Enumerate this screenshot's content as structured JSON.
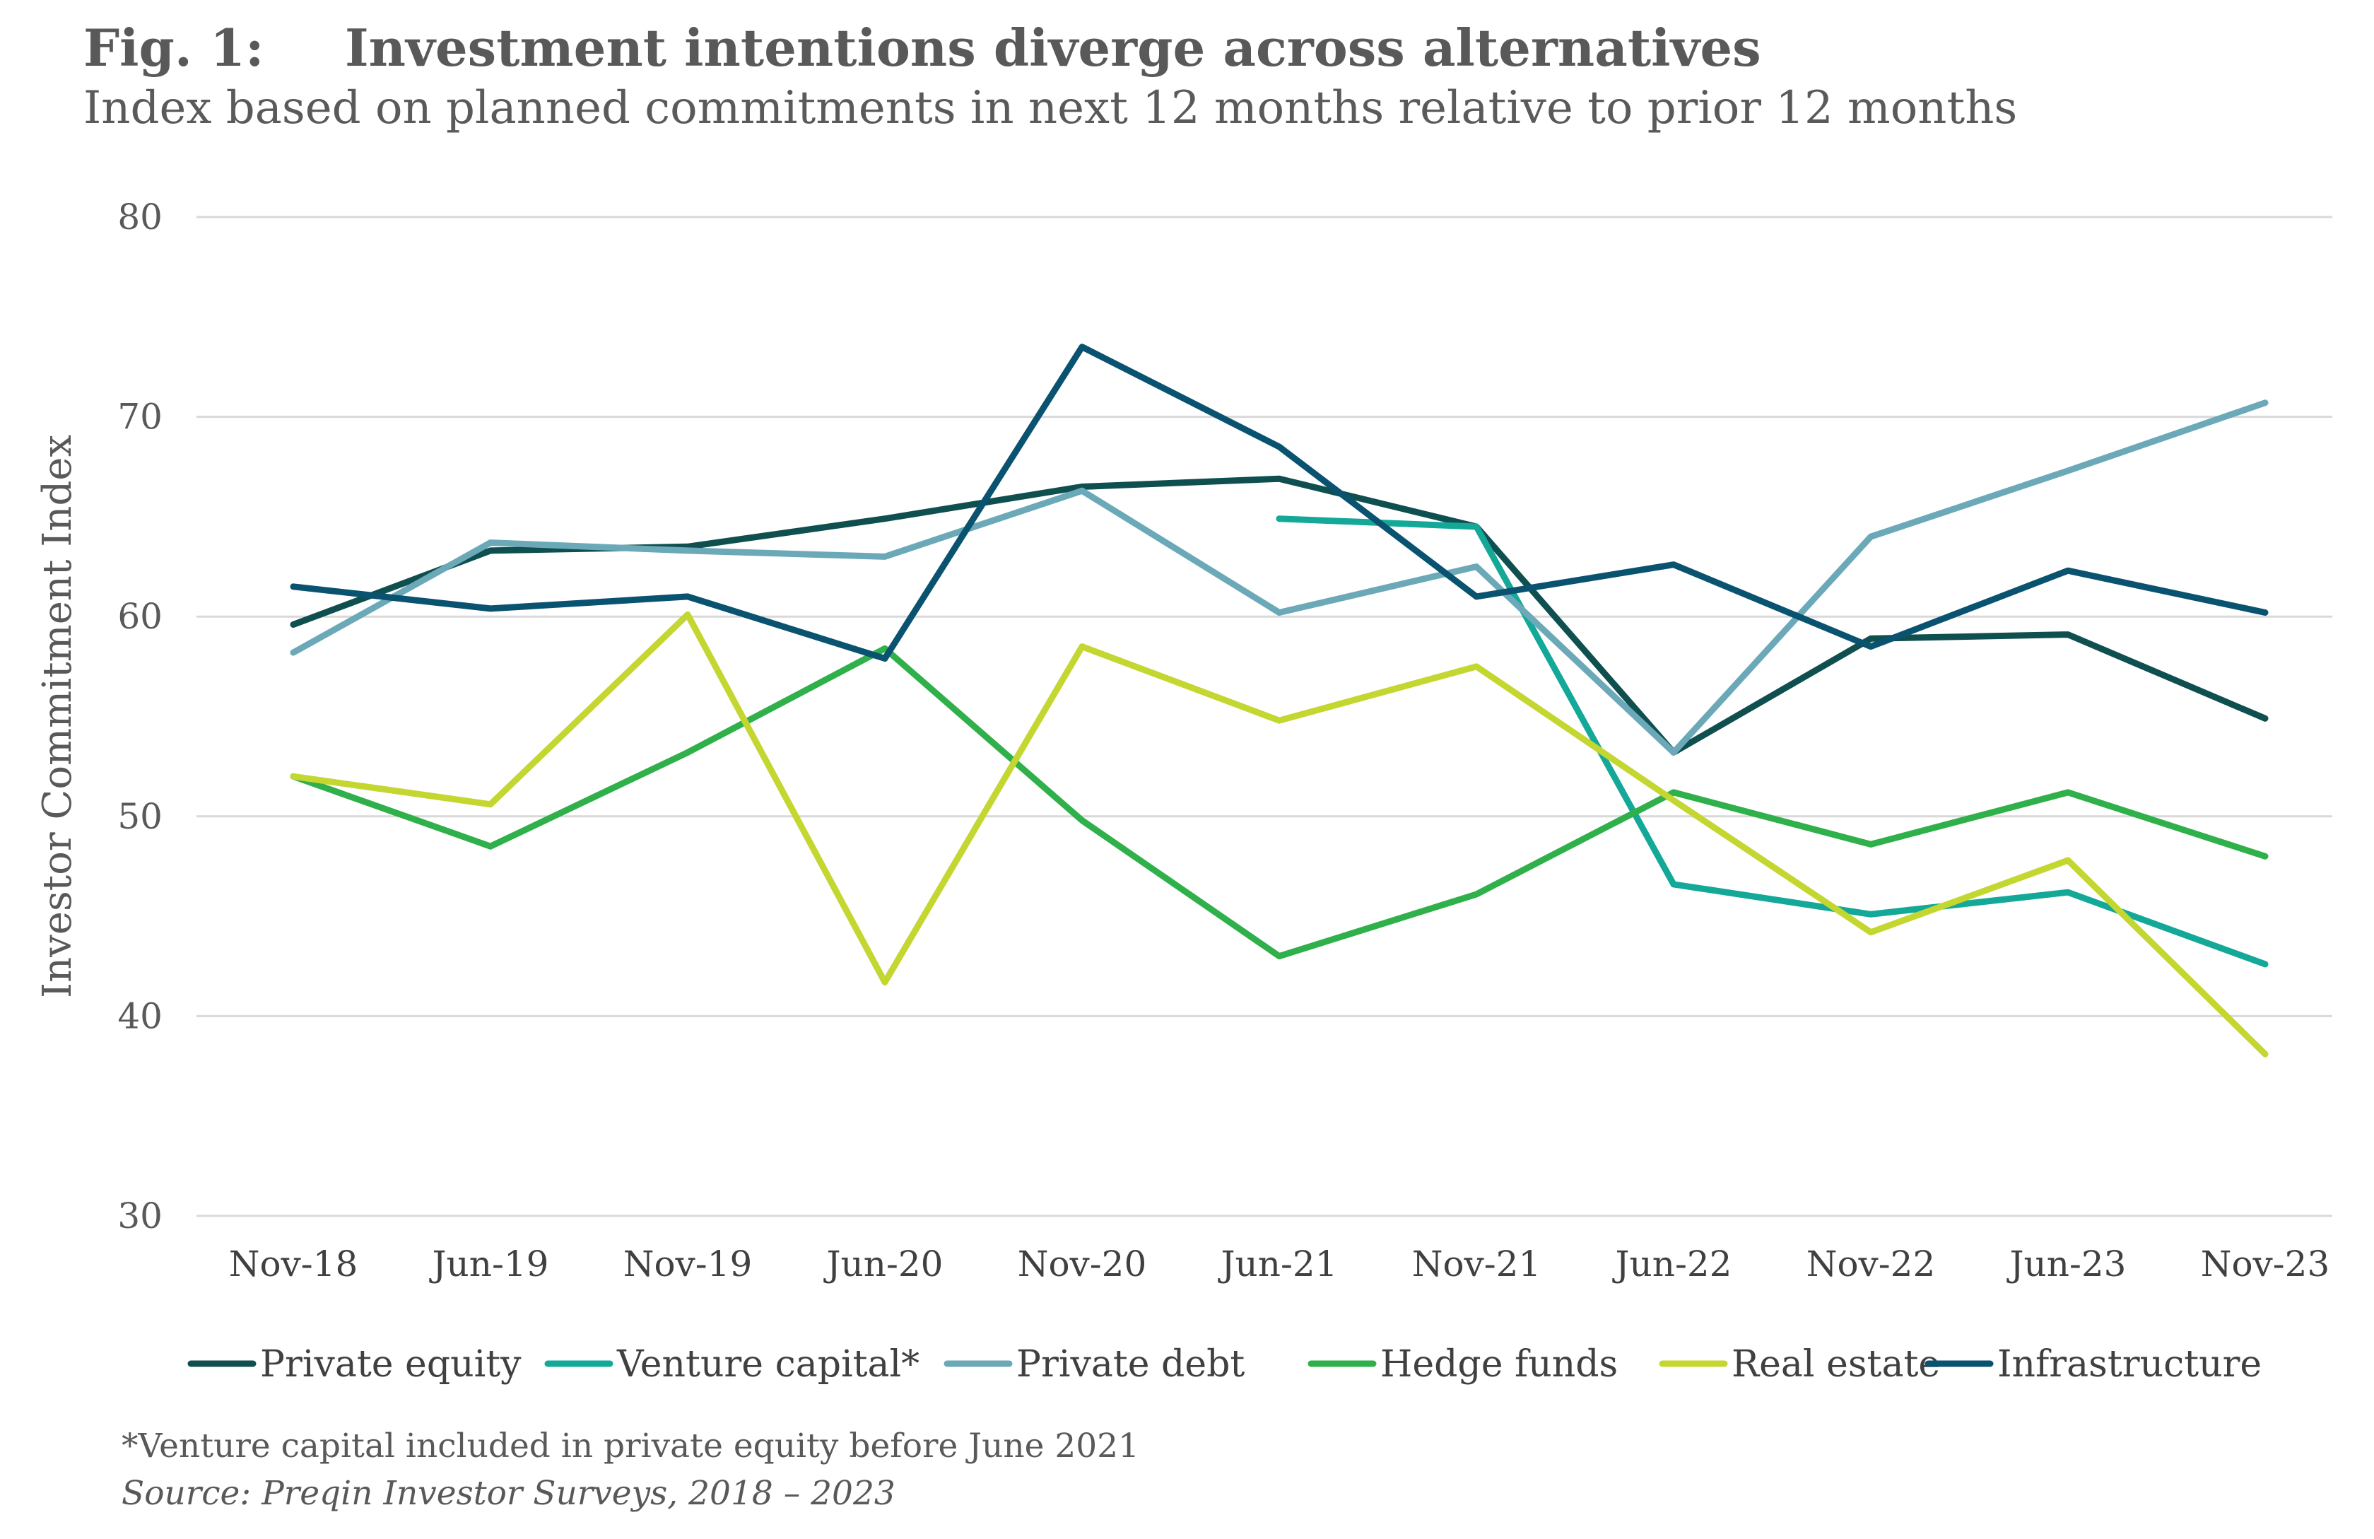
{
  "header": {
    "fig_label": "Fig. 1:",
    "title": "Investment intentions diverge across alternatives",
    "subtitle": "Index based on planned commitments in next 12 months relative to prior 12 months"
  },
  "footnote": "*Venture capital included in private equity before June 2021",
  "source": "Source: Preqin Investor Surveys, 2018 – 2023",
  "chart_data": {
    "type": "line",
    "ylabel": "Investor Commitment Index",
    "ylim": [
      30,
      80
    ],
    "yticks": [
      30,
      40,
      50,
      60,
      70,
      80
    ],
    "grid": true,
    "legend_position": "bottom",
    "categories": [
      "Nov-18",
      "Jun-19",
      "Nov-19",
      "Jun-20",
      "Nov-20",
      "Jun-21",
      "Nov-21",
      "Jun-22",
      "Nov-22",
      "Jun-23",
      "Nov-23"
    ],
    "series": [
      {
        "name": "Private equity",
        "color": "#0f4f4f",
        "values": [
          59.6,
          63.3,
          63.5,
          64.9,
          66.5,
          66.9,
          64.5,
          53.2,
          58.9,
          59.1,
          54.9
        ]
      },
      {
        "name": "Venture capital*",
        "color": "#14a898",
        "values": [
          null,
          null,
          null,
          null,
          null,
          64.9,
          64.5,
          46.6,
          45.1,
          46.2,
          42.6
        ]
      },
      {
        "name": "Private debt",
        "color": "#6ba9b8",
        "values": [
          58.2,
          63.7,
          63.3,
          63.0,
          66.3,
          60.2,
          62.5,
          53.2,
          64.0,
          67.3,
          70.7
        ]
      },
      {
        "name": "Hedge funds",
        "color": "#2fb04a",
        "values": [
          52.0,
          48.5,
          53.2,
          58.4,
          49.8,
          43.0,
          46.1,
          51.2,
          48.6,
          51.2,
          48.0
        ]
      },
      {
        "name": "Real estate",
        "color": "#c4d630",
        "values": [
          52.0,
          50.6,
          60.1,
          41.7,
          58.5,
          54.8,
          57.5,
          50.8,
          44.2,
          47.8,
          38.1
        ]
      },
      {
        "name": "Infrastructure",
        "color": "#0a5370",
        "values": [
          61.5,
          60.4,
          61.0,
          57.9,
          73.5,
          68.5,
          61.0,
          62.6,
          58.5,
          62.3,
          60.2
        ]
      }
    ]
  }
}
